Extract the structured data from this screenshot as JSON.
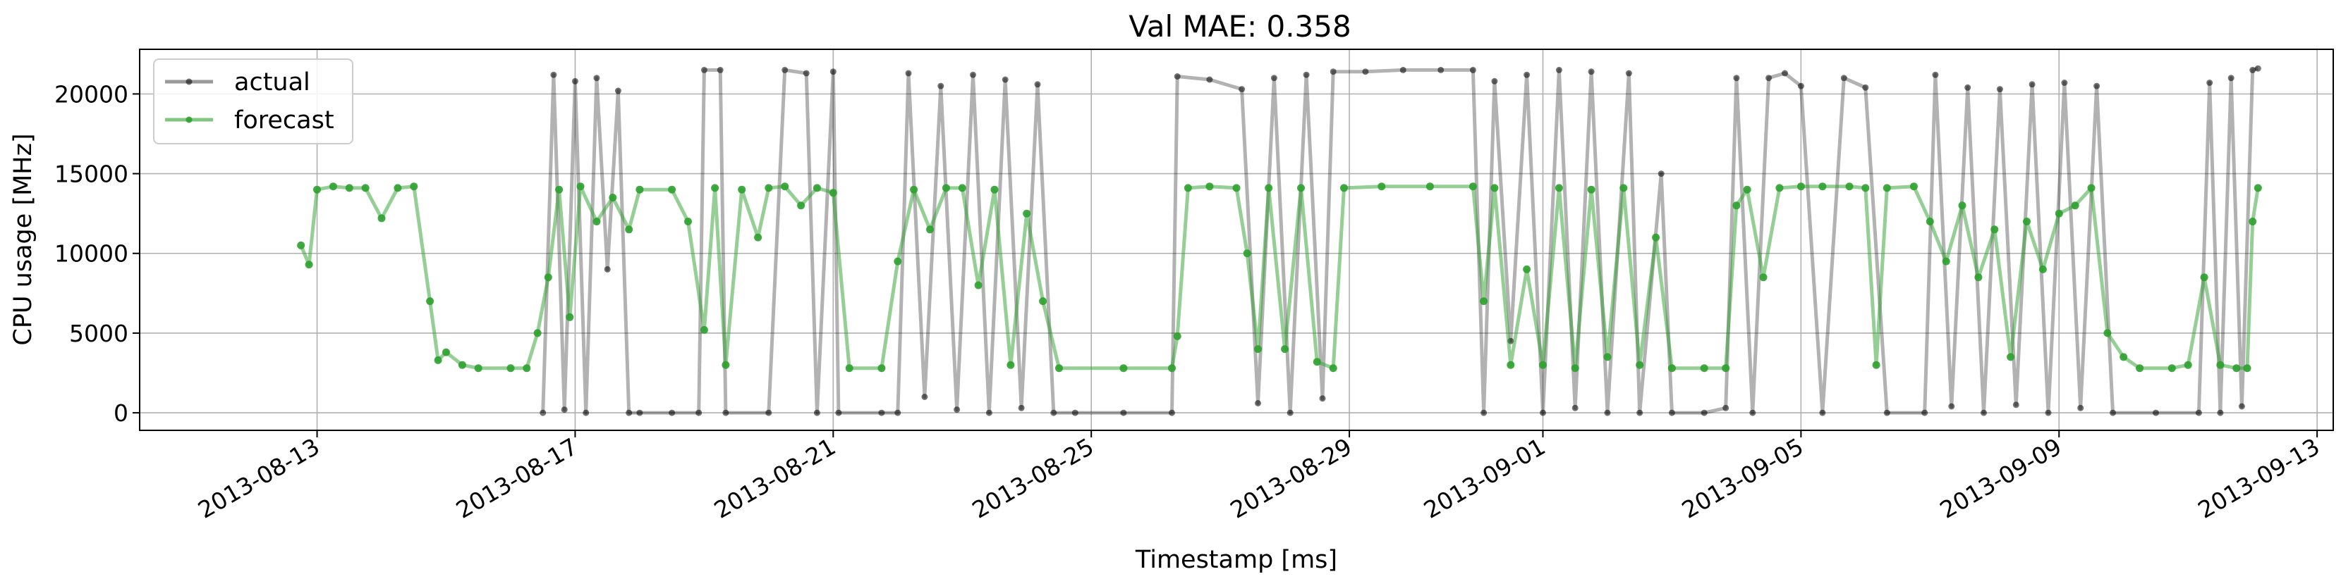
{
  "chart_data": {
    "type": "line",
    "title": "Val MAE: 0.358",
    "xlabel": "Timestamp [ms]",
    "ylabel": "CPU usage [MHz]",
    "xlim": [
      "2013-08-10T06:00",
      "2013-09-13T06:00"
    ],
    "ylim": [
      -1100,
      22800
    ],
    "x_ticks": [
      "2013-08-13",
      "2013-08-17",
      "2013-08-21",
      "2013-08-25",
      "2013-08-29",
      "2013-09-01",
      "2013-09-05",
      "2013-09-09",
      "2013-09-13"
    ],
    "y_ticks": [
      0,
      5000,
      10000,
      15000,
      20000
    ],
    "grid": true,
    "legend_position": "top-left",
    "series": [
      {
        "name": "actual",
        "color": "#000000",
        "points": [
          [
            "2013-08-16T12:00",
            0
          ],
          [
            "2013-08-16T16:00",
            21200
          ],
          [
            "2013-08-16T20:00",
            200
          ],
          [
            "2013-08-17T00:00",
            20800
          ],
          [
            "2013-08-17T04:00",
            0
          ],
          [
            "2013-08-17T08:00",
            21000
          ],
          [
            "2013-08-17T12:00",
            9000
          ],
          [
            "2013-08-17T16:00",
            20200
          ],
          [
            "2013-08-17T20:00",
            0
          ],
          [
            "2013-08-18T00:00",
            0
          ],
          [
            "2013-08-18T12:00",
            0
          ],
          [
            "2013-08-18T22:00",
            0
          ],
          [
            "2013-08-19T00:00",
            21500
          ],
          [
            "2013-08-19T06:00",
            21500
          ],
          [
            "2013-08-19T08:00",
            0
          ],
          [
            "2013-08-20T00:00",
            0
          ],
          [
            "2013-08-20T06:00",
            21500
          ],
          [
            "2013-08-20T14:00",
            21300
          ],
          [
            "2013-08-20T18:00",
            0
          ],
          [
            "2013-08-21T00:00",
            21400
          ],
          [
            "2013-08-21T02:00",
            0
          ],
          [
            "2013-08-21T18:00",
            0
          ],
          [
            "2013-08-22T00:00",
            0
          ],
          [
            "2013-08-22T04:00",
            21300
          ],
          [
            "2013-08-22T10:00",
            1000
          ],
          [
            "2013-08-22T16:00",
            20500
          ],
          [
            "2013-08-22T22:00",
            200
          ],
          [
            "2013-08-23T04:00",
            21200
          ],
          [
            "2013-08-23T10:00",
            0
          ],
          [
            "2013-08-23T16:00",
            20900
          ],
          [
            "2013-08-23T22:00",
            300
          ],
          [
            "2013-08-24T04:00",
            20600
          ],
          [
            "2013-08-24T10:00",
            0
          ],
          [
            "2013-08-24T18:00",
            0
          ],
          [
            "2013-08-25T12:00",
            0
          ],
          [
            "2013-08-26T06:00",
            0
          ],
          [
            "2013-08-26T08:00",
            21100
          ],
          [
            "2013-08-26T20:00",
            20900
          ],
          [
            "2013-08-27T08:00",
            20300
          ],
          [
            "2013-08-27T14:00",
            600
          ],
          [
            "2013-08-27T20:00",
            21000
          ],
          [
            "2013-08-28T02:00",
            0
          ],
          [
            "2013-08-28T08:00",
            21200
          ],
          [
            "2013-08-28T14:00",
            900
          ],
          [
            "2013-08-28T18:00",
            21400
          ],
          [
            "2013-08-29T06:00",
            21400
          ],
          [
            "2013-08-29T20:00",
            21500
          ],
          [
            "2013-08-30T10:00",
            21500
          ],
          [
            "2013-08-30T22:00",
            21500
          ],
          [
            "2013-08-31T02:00",
            0
          ],
          [
            "2013-08-31T06:00",
            20800
          ],
          [
            "2013-08-31T12:00",
            4500
          ],
          [
            "2013-08-31T18:00",
            21200
          ],
          [
            "2013-09-01T00:00",
            0
          ],
          [
            "2013-09-01T06:00",
            21500
          ],
          [
            "2013-09-01T12:00",
            300
          ],
          [
            "2013-09-01T18:00",
            21400
          ],
          [
            "2013-09-02T00:00",
            0
          ],
          [
            "2013-09-02T08:00",
            21300
          ],
          [
            "2013-09-02T12:00",
            0
          ],
          [
            "2013-09-02T20:00",
            15000
          ],
          [
            "2013-09-03T00:00",
            0
          ],
          [
            "2013-09-03T12:00",
            0
          ],
          [
            "2013-09-03T20:00",
            300
          ],
          [
            "2013-09-04T00:00",
            21000
          ],
          [
            "2013-09-04T06:00",
            0
          ],
          [
            "2013-09-04T12:00",
            21000
          ],
          [
            "2013-09-04T18:00",
            21300
          ],
          [
            "2013-09-05T00:00",
            20500
          ],
          [
            "2013-09-05T08:00",
            0
          ],
          [
            "2013-09-05T16:00",
            21000
          ],
          [
            "2013-09-06T00:00",
            20400
          ],
          [
            "2013-09-06T08:00",
            0
          ],
          [
            "2013-09-06T22:00",
            0
          ],
          [
            "2013-09-07T02:00",
            21200
          ],
          [
            "2013-09-07T08:00",
            400
          ],
          [
            "2013-09-07T14:00",
            20400
          ],
          [
            "2013-09-07T20:00",
            0
          ],
          [
            "2013-09-08T02:00",
            20300
          ],
          [
            "2013-09-08T08:00",
            500
          ],
          [
            "2013-09-08T14:00",
            20600
          ],
          [
            "2013-09-08T20:00",
            0
          ],
          [
            "2013-09-09T02:00",
            20700
          ],
          [
            "2013-09-09T08:00",
            300
          ],
          [
            "2013-09-09T14:00",
            20500
          ],
          [
            "2013-09-09T20:00",
            0
          ],
          [
            "2013-09-10T12:00",
            0
          ],
          [
            "2013-09-11T04:00",
            0
          ],
          [
            "2013-09-11T08:00",
            20700
          ],
          [
            "2013-09-11T12:00",
            0
          ],
          [
            "2013-09-11T16:00",
            21000
          ],
          [
            "2013-09-11T20:00",
            400
          ],
          [
            "2013-09-12T00:00",
            21500
          ],
          [
            "2013-09-12T02:00",
            21600
          ]
        ]
      },
      {
        "name": "forecast",
        "color": "#2ca02c",
        "points": [
          [
            "2013-08-12T18:00",
            10500
          ],
          [
            "2013-08-12T21:00",
            9300
          ],
          [
            "2013-08-13T00:00",
            14000
          ],
          [
            "2013-08-13T06:00",
            14200
          ],
          [
            "2013-08-13T12:00",
            14100
          ],
          [
            "2013-08-13T18:00",
            14100
          ],
          [
            "2013-08-14T00:00",
            12200
          ],
          [
            "2013-08-14T06:00",
            14100
          ],
          [
            "2013-08-14T12:00",
            14200
          ],
          [
            "2013-08-14T18:00",
            7000
          ],
          [
            "2013-08-14T21:00",
            3300
          ],
          [
            "2013-08-15T00:00",
            3800
          ],
          [
            "2013-08-15T06:00",
            3000
          ],
          [
            "2013-08-15T12:00",
            2800
          ],
          [
            "2013-08-16T00:00",
            2800
          ],
          [
            "2013-08-16T06:00",
            2800
          ],
          [
            "2013-08-16T10:00",
            5000
          ],
          [
            "2013-08-16T14:00",
            8500
          ],
          [
            "2013-08-16T18:00",
            14000
          ],
          [
            "2013-08-16T22:00",
            6000
          ],
          [
            "2013-08-17T02:00",
            14200
          ],
          [
            "2013-08-17T08:00",
            12000
          ],
          [
            "2013-08-17T14:00",
            13500
          ],
          [
            "2013-08-17T20:00",
            11500
          ],
          [
            "2013-08-18T00:00",
            14000
          ],
          [
            "2013-08-18T12:00",
            14000
          ],
          [
            "2013-08-18T18:00",
            12000
          ],
          [
            "2013-08-19T00:00",
            5200
          ],
          [
            "2013-08-19T04:00",
            14100
          ],
          [
            "2013-08-19T08:00",
            3000
          ],
          [
            "2013-08-19T14:00",
            14000
          ],
          [
            "2013-08-19T20:00",
            11000
          ],
          [
            "2013-08-20T00:00",
            14100
          ],
          [
            "2013-08-20T06:00",
            14200
          ],
          [
            "2013-08-20T12:00",
            13000
          ],
          [
            "2013-08-20T18:00",
            14100
          ],
          [
            "2013-08-21T00:00",
            13800
          ],
          [
            "2013-08-21T06:00",
            2800
          ],
          [
            "2013-08-21T18:00",
            2800
          ],
          [
            "2013-08-22T00:00",
            9500
          ],
          [
            "2013-08-22T06:00",
            14000
          ],
          [
            "2013-08-22T12:00",
            11500
          ],
          [
            "2013-08-22T18:00",
            14100
          ],
          [
            "2013-08-23T00:00",
            14100
          ],
          [
            "2013-08-23T06:00",
            8000
          ],
          [
            "2013-08-23T12:00",
            14000
          ],
          [
            "2013-08-23T18:00",
            3000
          ],
          [
            "2013-08-24T00:00",
            12500
          ],
          [
            "2013-08-24T06:00",
            7000
          ],
          [
            "2013-08-24T12:00",
            2800
          ],
          [
            "2013-08-25T12:00",
            2800
          ],
          [
            "2013-08-26T06:00",
            2800
          ],
          [
            "2013-08-26T08:00",
            4800
          ],
          [
            "2013-08-26T12:00",
            14100
          ],
          [
            "2013-08-26T20:00",
            14200
          ],
          [
            "2013-08-27T06:00",
            14100
          ],
          [
            "2013-08-27T10:00",
            10000
          ],
          [
            "2013-08-27T14:00",
            4000
          ],
          [
            "2013-08-27T18:00",
            14100
          ],
          [
            "2013-08-28T00:00",
            4000
          ],
          [
            "2013-08-28T06:00",
            14100
          ],
          [
            "2013-08-28T12:00",
            3200
          ],
          [
            "2013-08-28T18:00",
            2800
          ],
          [
            "2013-08-28T22:00",
            14100
          ],
          [
            "2013-08-29T12:00",
            14200
          ],
          [
            "2013-08-30T06:00",
            14200
          ],
          [
            "2013-08-30T22:00",
            14200
          ],
          [
            "2013-08-31T02:00",
            7000
          ],
          [
            "2013-08-31T06:00",
            14100
          ],
          [
            "2013-08-31T12:00",
            3000
          ],
          [
            "2013-08-31T18:00",
            9000
          ],
          [
            "2013-09-01T00:00",
            3000
          ],
          [
            "2013-09-01T06:00",
            14100
          ],
          [
            "2013-09-01T12:00",
            2800
          ],
          [
            "2013-09-01T18:00",
            14000
          ],
          [
            "2013-09-02T00:00",
            3500
          ],
          [
            "2013-09-02T06:00",
            14100
          ],
          [
            "2013-09-02T12:00",
            3000
          ],
          [
            "2013-09-02T18:00",
            11000
          ],
          [
            "2013-09-03T00:00",
            2800
          ],
          [
            "2013-09-03T12:00",
            2800
          ],
          [
            "2013-09-03T20:00",
            2800
          ],
          [
            "2013-09-04T00:00",
            13000
          ],
          [
            "2013-09-04T04:00",
            14000
          ],
          [
            "2013-09-04T10:00",
            8500
          ],
          [
            "2013-09-04T16:00",
            14100
          ],
          [
            "2013-09-05T00:00",
            14200
          ],
          [
            "2013-09-05T08:00",
            14200
          ],
          [
            "2013-09-05T18:00",
            14200
          ],
          [
            "2013-09-06T00:00",
            14100
          ],
          [
            "2013-09-06T04:00",
            3000
          ],
          [
            "2013-09-06T08:00",
            14100
          ],
          [
            "2013-09-06T18:00",
            14200
          ],
          [
            "2013-09-07T00:00",
            12000
          ],
          [
            "2013-09-07T06:00",
            9500
          ],
          [
            "2013-09-07T12:00",
            13000
          ],
          [
            "2013-09-07T18:00",
            8500
          ],
          [
            "2013-09-08T00:00",
            11500
          ],
          [
            "2013-09-08T06:00",
            3500
          ],
          [
            "2013-09-08T12:00",
            12000
          ],
          [
            "2013-09-08T18:00",
            9000
          ],
          [
            "2013-09-09T00:00",
            12500
          ],
          [
            "2013-09-09T06:00",
            13000
          ],
          [
            "2013-09-09T12:00",
            14100
          ],
          [
            "2013-09-09T18:00",
            5000
          ],
          [
            "2013-09-10T00:00",
            3500
          ],
          [
            "2013-09-10T06:00",
            2800
          ],
          [
            "2013-09-10T18:00",
            2800
          ],
          [
            "2013-09-11T00:00",
            3000
          ],
          [
            "2013-09-11T06:00",
            8500
          ],
          [
            "2013-09-11T12:00",
            3000
          ],
          [
            "2013-09-11T18:00",
            2800
          ],
          [
            "2013-09-11T22:00",
            2800
          ],
          [
            "2013-09-12T00:00",
            12000
          ],
          [
            "2013-09-12T02:00",
            14100
          ]
        ]
      }
    ]
  }
}
